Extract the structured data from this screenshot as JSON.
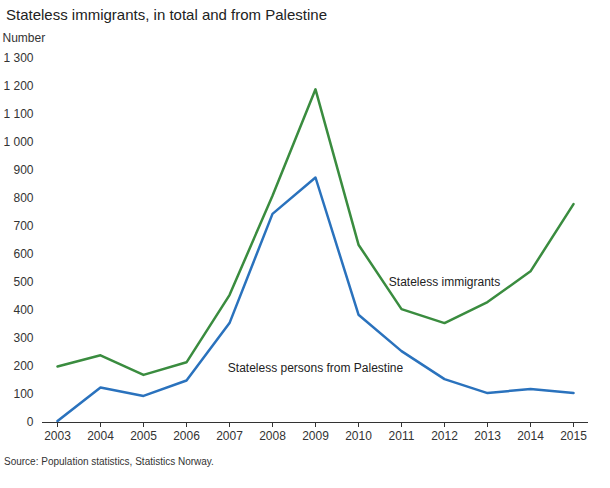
{
  "chart_data": {
    "type": "line",
    "title": "Stateless immigrants, in total and from Palestine",
    "y_label": "Number",
    "source": "Source: Population statistics, Statistics Norway.",
    "categories": [
      "2003",
      "2004",
      "2005",
      "2006",
      "2007",
      "2008",
      "2009",
      "2010",
      "2011",
      "2012",
      "2013",
      "2014",
      "2015"
    ],
    "series": [
      {
        "name": "Stateless immigrants",
        "color": "#3a8c3f",
        "values": [
          200,
          240,
          170,
          215,
          455,
          810,
          1190,
          635,
          405,
          355,
          430,
          540,
          780
        ]
      },
      {
        "name": "Stateless persons from Palestine",
        "color": "#2a72bd",
        "values": [
          5,
          125,
          95,
          150,
          355,
          745,
          875,
          385,
          255,
          155,
          105,
          120,
          105
        ]
      }
    ],
    "ylim": [
      0,
      1300
    ],
    "yticks": [
      0,
      100,
      200,
      300,
      400,
      500,
      600,
      700,
      800,
      900,
      {
        "value": 1000,
        "label": "1 000"
      },
      {
        "value": 1100,
        "label": "1 100"
      },
      {
        "value": 1200,
        "label": "1 200"
      },
      {
        "value": 1300,
        "label": "1 300"
      }
    ],
    "grid": false
  }
}
